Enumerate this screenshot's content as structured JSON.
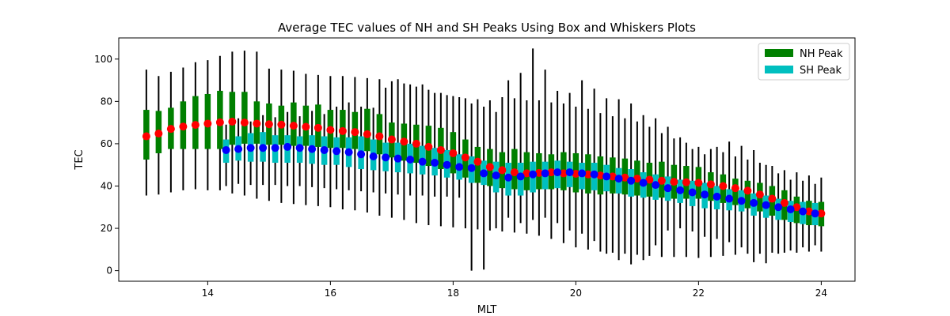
{
  "chart_data": {
    "type": "box",
    "title": "Average TEC values of NH and SH Peaks Using Box and Whiskers Plots",
    "xlabel": "MLT",
    "ylabel": "TEC",
    "xlim": [
      12.55,
      24.55
    ],
    "ylim": [
      -5,
      110
    ],
    "xticks": [
      14,
      16,
      18,
      20,
      22,
      24
    ],
    "yticks": [
      0,
      20,
      40,
      60,
      80,
      100
    ],
    "legend": {
      "position": "top-right",
      "entries": [
        "NH Peak",
        "SH Peak"
      ]
    },
    "colors": {
      "nh_box": "#008000",
      "sh_box": "#00bfbf",
      "nh_mean": "#ff0000",
      "sh_mean": "#0000ff",
      "whisker": "#000000"
    },
    "series": [
      {
        "name": "NH Peak",
        "x": [
          13.0,
          13.2,
          13.4,
          13.6,
          13.8,
          14.0,
          14.2,
          14.4,
          14.6,
          14.8,
          15.0,
          15.2,
          15.4,
          15.6,
          15.8,
          16.0,
          16.2,
          16.4,
          16.6,
          16.8,
          17.0,
          17.2,
          17.4,
          17.6,
          17.8,
          18.0,
          18.2,
          18.4,
          18.6,
          18.8,
          19.0,
          19.2,
          19.4,
          19.6,
          19.8,
          20.0,
          20.2,
          20.4,
          20.6,
          20.8,
          21.0,
          21.2,
          21.4,
          21.6,
          21.8,
          22.0,
          22.2,
          22.4,
          22.6,
          22.8,
          23.0,
          23.2,
          23.4,
          23.6,
          23.8,
          24.0
        ],
        "mean": [
          63.5,
          64.8,
          67.0,
          68.1,
          68.9,
          69.5,
          70.1,
          70.4,
          70.0,
          69.5,
          69.2,
          69.0,
          68.5,
          68.0,
          67.5,
          66.5,
          66.0,
          65.5,
          64.5,
          63.5,
          62.0,
          61.0,
          60.0,
          58.5,
          57.0,
          55.5,
          53.5,
          51.5,
          49.0,
          47.5,
          46.5,
          46.0,
          46.2,
          46.5,
          46.0,
          45.8,
          45.5,
          45.0,
          44.5,
          44.0,
          43.5,
          43.0,
          42.5,
          42.0,
          41.8,
          41.5,
          40.8,
          40.0,
          39.0,
          37.8,
          36.0,
          34.0,
          32.0,
          30.0,
          28.0,
          27.0
        ],
        "q1": [
          52.5,
          55.5,
          57.5,
          57.5,
          57.5,
          57.5,
          57.5,
          59.5,
          60.0,
          60.0,
          59.5,
          59.5,
          59.0,
          59.0,
          58.5,
          58.0,
          58.0,
          57.5,
          56.5,
          55.0,
          53.5,
          52.0,
          51.0,
          49.5,
          48.0,
          46.0,
          44.0,
          41.5,
          40.0,
          39.0,
          38.5,
          38.0,
          38.5,
          38.5,
          38.0,
          37.0,
          36.5,
          36.0,
          36.5,
          36.0,
          35.5,
          35.0,
          34.5,
          34.0,
          34.0,
          34.0,
          33.0,
          32.0,
          31.0,
          29.5,
          28.0,
          26.0,
          24.0,
          22.5,
          21.5,
          21.0
        ],
        "q3": [
          76.0,
          75.5,
          77.0,
          80.0,
          82.5,
          83.5,
          85.0,
          84.5,
          84.5,
          80.0,
          79.0,
          78.0,
          79.5,
          78.0,
          78.5,
          76.0,
          76.0,
          75.0,
          76.5,
          74.0,
          70.0,
          69.5,
          69.0,
          68.5,
          67.5,
          65.5,
          62.0,
          58.5,
          57.5,
          56.0,
          57.5,
          56.0,
          55.5,
          55.0,
          56.0,
          55.5,
          55.0,
          54.0,
          53.5,
          53.0,
          52.0,
          51.0,
          51.5,
          50.0,
          49.5,
          49.0,
          46.5,
          45.5,
          43.5,
          42.5,
          41.5,
          40.0,
          38.0,
          35.0,
          33.0,
          32.5
        ],
        "whislo": [
          35.5,
          36.0,
          37.0,
          38.0,
          38.5,
          38.0,
          38.0,
          36.5,
          35.5,
          34.0,
          33.0,
          32.0,
          31.5,
          31.0,
          30.5,
          30.0,
          29.0,
          28.5,
          27.5,
          26.0,
          25.0,
          24.0,
          22.5,
          21.5,
          21.0,
          20.5,
          20.0,
          19.5,
          19.0,
          18.5,
          18.0,
          17.5,
          16.5,
          15.0,
          13.0,
          11.0,
          10.0,
          9.0,
          8.5,
          8.0,
          7.5,
          7.0,
          6.5,
          6.5,
          6.5,
          6.0,
          6.5,
          7.0,
          7.5,
          8.0,
          8.0,
          8.5,
          8.5,
          8.5,
          9.0,
          9.0
        ],
        "whishi": [
          95.0,
          92.0,
          94.0,
          96.0,
          98.5,
          99.5,
          101.5,
          103.5,
          104.0,
          103.5,
          95.5,
          95.0,
          94.5,
          93.0,
          92.5,
          92.0,
          92.0,
          91.5,
          91.0,
          90.5,
          89.5,
          88.5,
          87.0,
          85.5,
          84.0,
          82.5,
          81.5,
          81.0,
          80.5,
          82.0,
          81.5,
          80.5,
          80.5,
          79.5,
          79.0,
          77.5,
          76.5,
          74.5,
          73.0,
          72.0,
          70.5,
          68.0,
          65.0,
          62.5,
          60.5,
          58.5,
          57.5,
          56.0,
          54.0,
          52.5,
          51.0,
          49.5,
          47.5,
          46.5,
          45.0,
          44.0
        ]
      },
      {
        "name": "SH Peak",
        "x": [
          14.3,
          14.5,
          14.7,
          14.9,
          15.1,
          15.3,
          15.5,
          15.7,
          15.9,
          16.1,
          16.3,
          16.5,
          16.7,
          16.9,
          17.1,
          17.3,
          17.5,
          17.7,
          17.9,
          18.1,
          18.3,
          18.5,
          18.7,
          18.9,
          19.1,
          19.3,
          19.5,
          19.7,
          19.9,
          20.1,
          20.3,
          20.5,
          20.7,
          20.9,
          21.1,
          21.3,
          21.5,
          21.7,
          21.9,
          22.1,
          22.3,
          22.5,
          22.7,
          22.9,
          23.1,
          23.3,
          23.5,
          23.7,
          23.9
        ],
        "mean": [
          57.0,
          57.5,
          58.0,
          58.0,
          58.0,
          58.5,
          58.0,
          57.5,
          57.0,
          56.5,
          56.0,
          55.0,
          54.0,
          53.5,
          53.0,
          52.5,
          51.5,
          51.0,
          50.0,
          49.0,
          48.5,
          46.0,
          45.0,
          44.0,
          44.5,
          45.5,
          46.0,
          46.5,
          46.5,
          46.0,
          45.5,
          44.5,
          43.5,
          42.5,
          41.5,
          40.5,
          39.0,
          38.0,
          37.0,
          36.0,
          35.0,
          34.0,
          33.0,
          32.0,
          31.0,
          30.0,
          29.0,
          28.0,
          27.0
        ],
        "q1": [
          51.0,
          52.0,
          51.5,
          51.5,
          51.0,
          51.0,
          51.0,
          50.5,
          50.0,
          50.0,
          49.0,
          48.0,
          47.5,
          47.0,
          46.5,
          46.0,
          45.5,
          45.0,
          44.0,
          43.0,
          41.5,
          40.5,
          37.0,
          35.5,
          35.5,
          37.0,
          38.5,
          39.0,
          39.5,
          38.5,
          38.0,
          37.5,
          36.5,
          35.0,
          34.5,
          33.5,
          33.0,
          32.0,
          30.5,
          29.5,
          29.0,
          28.5,
          28.0,
          26.0,
          25.0,
          24.0,
          23.0,
          22.0,
          21.5
        ],
        "q3": [
          62.0,
          63.5,
          65.0,
          65.5,
          64.0,
          64.0,
          63.5,
          64.0,
          63.5,
          63.0,
          63.0,
          63.5,
          62.0,
          60.5,
          60.5,
          60.0,
          59.0,
          58.0,
          57.0,
          55.0,
          54.0,
          52.0,
          51.5,
          51.0,
          51.0,
          51.5,
          51.5,
          52.0,
          51.5,
          51.0,
          51.0,
          50.0,
          48.5,
          48.0,
          46.5,
          45.5,
          44.5,
          43.0,
          42.5,
          41.5,
          40.0,
          38.5,
          38.0,
          36.5,
          35.5,
          34.0,
          33.0,
          32.5,
          32.0
        ],
        "whislo": [
          40.0,
          41.0,
          40.5,
          40.5,
          40.5,
          40.0,
          40.0,
          39.5,
          39.0,
          38.5,
          38.0,
          37.5,
          37.0,
          36.5,
          36.0,
          35.5,
          35.5,
          35.0,
          35.0,
          34.5,
          0.0,
          0.5,
          20.0,
          25.0,
          22.5,
          24.0,
          25.0,
          22.5,
          19.0,
          17.5,
          14.0,
          8.0,
          5.0,
          3.0,
          5.0,
          12.0,
          19.0,
          20.0,
          18.5,
          16.0,
          15.0,
          13.5,
          11.0,
          4.0,
          3.5,
          8.0,
          9.5,
          11.0,
          12.0
        ],
        "whishi": [
          69.0,
          72.0,
          70.5,
          73.5,
          72.5,
          75.0,
          73.0,
          75.5,
          74.0,
          77.5,
          79.5,
          77.5,
          77.0,
          86.5,
          90.5,
          88.0,
          88.0,
          84.0,
          83.0,
          82.0,
          79.0,
          77.5,
          75.0,
          90.0,
          93.5,
          105.0,
          95.0,
          85.0,
          84.0,
          90.0,
          86.0,
          81.5,
          81.0,
          79.0,
          73.5,
          72.0,
          68.0,
          63.0,
          57.5,
          55.0,
          58.5,
          61.0,
          59.0,
          57.0,
          50.0,
          46.0,
          43.0,
          42.5,
          41.0
        ]
      }
    ]
  }
}
